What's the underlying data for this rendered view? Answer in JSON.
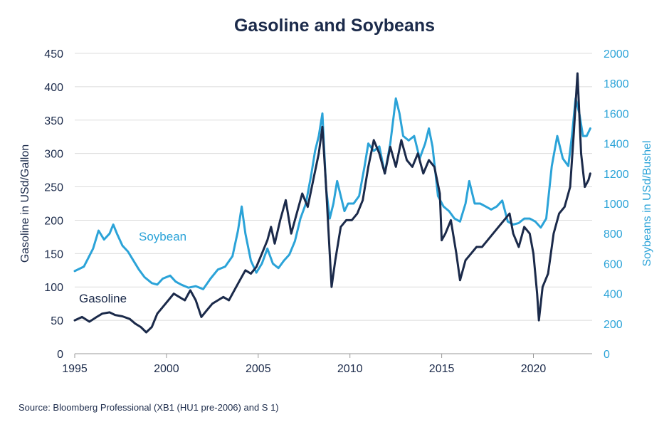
{
  "title": "Gasoline and Soybeans",
  "source": "Source: Bloomberg Professional (XB1 (HU1 pre-2006) and S 1)",
  "colors": {
    "gasoline": "#1b2a4a",
    "soybean": "#2ba3d8",
    "grid": "#dcdcdc",
    "text": "#1b2a4a"
  },
  "chart_data": {
    "type": "line",
    "title": "Gasoline and Soybeans",
    "xlabel": "",
    "ylabel_left": "Gasoline in USd/Gallon",
    "ylabel_right": "Soybeans in USd/Bushel",
    "xlim": [
      1995,
      2023.2
    ],
    "ylim_left": [
      0,
      450
    ],
    "ylim_right": [
      0,
      2000
    ],
    "x_ticks": [
      1995,
      2000,
      2005,
      2010,
      2015,
      2020
    ],
    "y_ticks_left": [
      0,
      50,
      100,
      150,
      200,
      250,
      300,
      350,
      400,
      450
    ],
    "y_ticks_right": [
      0,
      200,
      400,
      600,
      800,
      1000,
      1200,
      1400,
      1600,
      1800,
      2000
    ],
    "grid": "horizontal",
    "series": [
      {
        "name": "Soybean",
        "axis": "right",
        "x": [
          1995.0,
          1995.5,
          1996.0,
          1996.3,
          1996.6,
          1996.9,
          1997.1,
          1997.3,
          1997.6,
          1997.9,
          1998.2,
          1998.5,
          1998.8,
          1999.2,
          1999.5,
          1999.8,
          2000.2,
          2000.5,
          2000.8,
          2001.2,
          2001.6,
          2002.0,
          2002.4,
          2002.8,
          2003.2,
          2003.6,
          2003.9,
          2004.1,
          2004.3,
          2004.6,
          2004.9,
          2005.2,
          2005.5,
          2005.8,
          2006.1,
          2006.4,
          2006.7,
          2007.0,
          2007.3,
          2007.6,
          2007.9,
          2008.1,
          2008.3,
          2008.5,
          2008.7,
          2008.9,
          2009.1,
          2009.3,
          2009.5,
          2009.7,
          2009.9,
          2010.2,
          2010.5,
          2010.8,
          2011.0,
          2011.3,
          2011.6,
          2011.9,
          2012.2,
          2012.5,
          2012.7,
          2012.9,
          2013.2,
          2013.5,
          2013.8,
          2014.1,
          2014.3,
          2014.5,
          2014.8,
          2015.1,
          2015.4,
          2015.7,
          2016.0,
          2016.3,
          2016.5,
          2016.8,
          2017.1,
          2017.4,
          2017.7,
          2018.0,
          2018.3,
          2018.6,
          2018.9,
          2019.2,
          2019.5,
          2019.8,
          2020.1,
          2020.4,
          2020.7,
          2021.0,
          2021.3,
          2021.6,
          2021.9,
          2022.1,
          2022.3,
          2022.5,
          2022.7,
          2022.9,
          2023.1
        ],
        "values": [
          550,
          580,
          700,
          820,
          760,
          800,
          860,
          800,
          720,
          680,
          620,
          560,
          510,
          470,
          460,
          500,
          520,
          480,
          460,
          440,
          450,
          430,
          500,
          560,
          580,
          650,
          820,
          980,
          800,
          620,
          540,
          600,
          700,
          600,
          570,
          620,
          660,
          750,
          900,
          1000,
          1200,
          1350,
          1450,
          1600,
          1100,
          900,
          1000,
          1150,
          1050,
          950,
          1000,
          1000,
          1050,
          1250,
          1400,
          1350,
          1380,
          1200,
          1400,
          1700,
          1600,
          1450,
          1420,
          1450,
          1300,
          1400,
          1500,
          1380,
          1050,
          980,
          950,
          900,
          880,
          1000,
          1150,
          1000,
          1000,
          980,
          960,
          980,
          1020,
          880,
          860,
          870,
          900,
          900,
          880,
          840,
          900,
          1250,
          1450,
          1300,
          1250,
          1450,
          1700,
          1600,
          1450,
          1450,
          1500
        ]
      },
      {
        "name": "Gasoline",
        "axis": "left",
        "x": [
          1995.0,
          1995.4,
          1995.8,
          1996.2,
          1996.5,
          1996.9,
          1997.2,
          1997.6,
          1998.0,
          1998.3,
          1998.6,
          1998.9,
          1999.2,
          1999.5,
          1999.8,
          2000.1,
          2000.4,
          2000.7,
          2001.0,
          2001.3,
          2001.6,
          2001.9,
          2002.2,
          2002.5,
          2002.8,
          2003.1,
          2003.4,
          2003.7,
          2004.0,
          2004.3,
          2004.6,
          2004.9,
          2005.2,
          2005.5,
          2005.7,
          2005.9,
          2006.2,
          2006.5,
          2006.8,
          2007.1,
          2007.4,
          2007.7,
          2008.0,
          2008.3,
          2008.5,
          2008.7,
          2008.9,
          2009.0,
          2009.2,
          2009.5,
          2009.8,
          2010.1,
          2010.4,
          2010.7,
          2011.0,
          2011.3,
          2011.6,
          2011.9,
          2012.2,
          2012.5,
          2012.8,
          2013.1,
          2013.4,
          2013.7,
          2014.0,
          2014.3,
          2014.6,
          2014.9,
          2015.0,
          2015.2,
          2015.5,
          2015.8,
          2016.0,
          2016.3,
          2016.6,
          2016.9,
          2017.2,
          2017.5,
          2017.8,
          2018.1,
          2018.4,
          2018.7,
          2018.9,
          2019.2,
          2019.5,
          2019.8,
          2020.0,
          2020.2,
          2020.3,
          2020.5,
          2020.8,
          2021.1,
          2021.4,
          2021.7,
          2022.0,
          2022.2,
          2022.4,
          2022.6,
          2022.8,
          2023.0,
          2023.1
        ],
        "values": [
          50,
          55,
          48,
          55,
          60,
          62,
          58,
          56,
          52,
          45,
          40,
          32,
          40,
          60,
          70,
          80,
          90,
          85,
          80,
          95,
          80,
          55,
          65,
          75,
          80,
          85,
          80,
          95,
          110,
          125,
          120,
          130,
          150,
          170,
          190,
          165,
          200,
          230,
          180,
          210,
          240,
          220,
          260,
          300,
          340,
          250,
          150,
          100,
          140,
          190,
          200,
          200,
          210,
          230,
          280,
          320,
          300,
          270,
          310,
          280,
          320,
          290,
          280,
          300,
          270,
          290,
          280,
          240,
          170,
          180,
          200,
          150,
          110,
          140,
          150,
          160,
          160,
          170,
          180,
          190,
          200,
          210,
          180,
          160,
          190,
          180,
          150,
          90,
          50,
          100,
          120,
          180,
          210,
          220,
          250,
          330,
          420,
          300,
          250,
          260,
          270
        ]
      }
    ],
    "annotations": [
      {
        "text": "Soybean",
        "series": "Soybean"
      },
      {
        "text": "Gasoline",
        "series": "Gasoline"
      }
    ]
  }
}
